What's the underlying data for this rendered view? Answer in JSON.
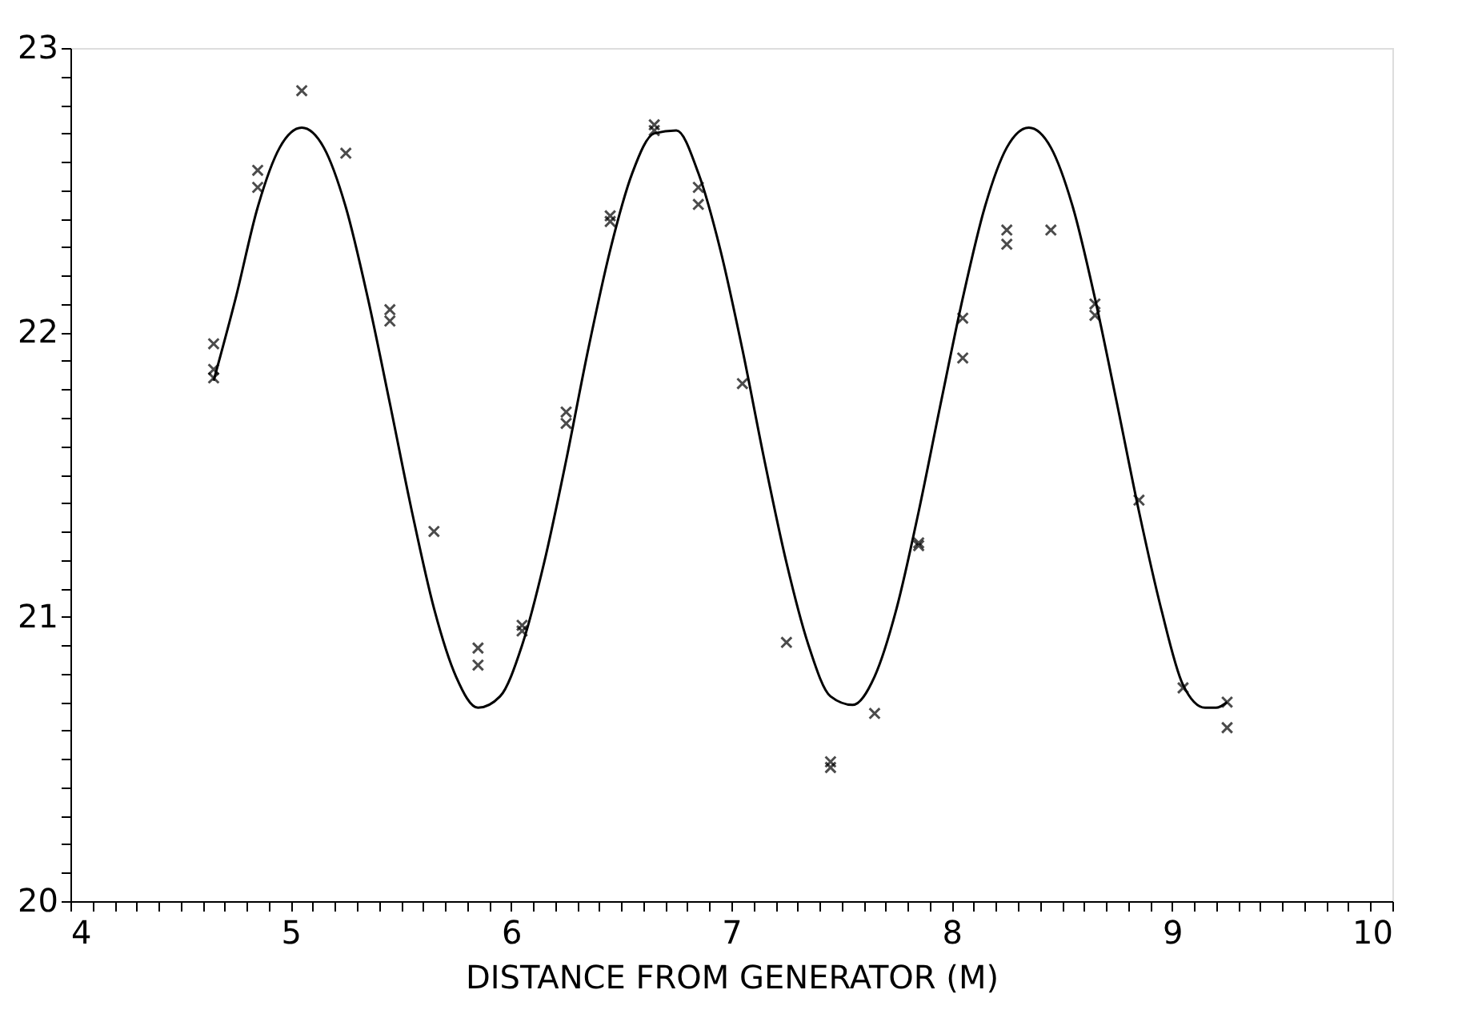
{
  "chart_data": {
    "type": "scatter",
    "xlabel": "DISTANCE FROM GENERATOR (M)",
    "xlim": [
      4,
      10
    ],
    "ylim": [
      20,
      23
    ],
    "grid": false,
    "xticks": [
      4,
      {
        "value": 4.1,
        "label": null
      },
      {
        "value": 4.2,
        "label": null
      },
      {
        "value": 4.3,
        "label": null
      },
      {
        "value": 4.4,
        "label": null
      },
      {
        "value": 4.5,
        "label": null
      },
      {
        "value": 4.6,
        "label": null
      },
      {
        "value": 4.7,
        "label": null
      },
      {
        "value": 4.8,
        "label": null
      },
      {
        "value": 4.9,
        "label": null
      },
      5,
      {
        "value": 5.1,
        "label": null
      },
      {
        "value": 5.2,
        "label": null
      },
      {
        "value": 5.3,
        "label": null
      },
      {
        "value": 5.4,
        "label": null
      },
      {
        "value": 5.5,
        "label": null
      },
      {
        "value": 5.6,
        "label": null
      },
      {
        "value": 5.7,
        "label": null
      },
      {
        "value": 5.8,
        "label": null
      },
      {
        "value": 5.9,
        "label": null
      },
      6,
      {
        "value": 6.1,
        "label": null
      },
      {
        "value": 6.2,
        "label": null
      },
      {
        "value": 6.3,
        "label": null
      },
      {
        "value": 6.4,
        "label": null
      },
      {
        "value": 6.5,
        "label": null
      },
      {
        "value": 6.6,
        "label": null
      },
      {
        "value": 6.7,
        "label": null
      },
      {
        "value": 6.8,
        "label": null
      },
      {
        "value": 6.9,
        "label": null
      },
      7,
      {
        "value": 7.1,
        "label": null
      },
      {
        "value": 7.2,
        "label": null
      },
      {
        "value": 7.3,
        "label": null
      },
      {
        "value": 7.4,
        "label": null
      },
      {
        "value": 7.5,
        "label": null
      },
      {
        "value": 7.6,
        "label": null
      },
      {
        "value": 7.7,
        "label": null
      },
      {
        "value": 7.8,
        "label": null
      },
      {
        "value": 7.9,
        "label": null
      },
      8,
      {
        "value": 8.1,
        "label": null
      },
      {
        "value": 8.2,
        "label": null
      },
      {
        "value": 8.3,
        "label": null
      },
      {
        "value": 8.4,
        "label": null
      },
      {
        "value": 8.5,
        "label": null
      },
      {
        "value": 8.6,
        "label": null
      },
      {
        "value": 8.7,
        "label": null
      },
      {
        "value": 8.8,
        "label": null
      },
      {
        "value": 8.9,
        "label": null
      },
      9,
      {
        "value": 9.1,
        "label": null
      },
      {
        "value": 9.2,
        "label": null
      },
      {
        "value": 9.3,
        "label": null
      },
      {
        "value": 9.4,
        "label": null
      },
      {
        "value": 9.5,
        "label": null
      },
      {
        "value": 9.6,
        "label": null
      },
      {
        "value": 9.7,
        "label": null
      },
      {
        "value": 9.8,
        "label": null
      },
      {
        "value": 9.9,
        "label": null
      },
      10
    ],
    "yticks": [
      20,
      {
        "value": 20.1,
        "label": null
      },
      {
        "value": 20.2,
        "label": null
      },
      {
        "value": 20.3,
        "label": null
      },
      {
        "value": 20.4,
        "label": null
      },
      {
        "value": 20.5,
        "label": null
      },
      {
        "value": 20.6,
        "label": null
      },
      {
        "value": 20.7,
        "label": null
      },
      {
        "value": 20.8,
        "label": null
      },
      {
        "value": 20.9,
        "label": null
      },
      21,
      {
        "value": 21.1,
        "label": null
      },
      {
        "value": 21.2,
        "label": null
      },
      {
        "value": 21.3,
        "label": null
      },
      {
        "value": 21.4,
        "label": null
      },
      {
        "value": 21.5,
        "label": null
      },
      {
        "value": 21.6,
        "label": null
      },
      {
        "value": 21.7,
        "label": null
      },
      {
        "value": 21.8,
        "label": null
      },
      {
        "value": 21.9,
        "label": null
      },
      22,
      {
        "value": 22.1,
        "label": null
      },
      {
        "value": 22.2,
        "label": null
      },
      {
        "value": 22.3,
        "label": null
      },
      {
        "value": 22.4,
        "label": null
      },
      {
        "value": 22.5,
        "label": null
      },
      {
        "value": 22.6,
        "label": null
      },
      {
        "value": 22.7,
        "label": null
      },
      {
        "value": 22.8,
        "label": null
      },
      {
        "value": 22.9,
        "label": null
      },
      23
    ],
    "series": [
      {
        "marker": "cross",
        "color": "#000000",
        "x": [
          4.65,
          4.65,
          4.65,
          4.85,
          4.85,
          5.05,
          5.25,
          5.45,
          5.45,
          5.65,
          5.85,
          5.85,
          6.05,
          6.05,
          6.25,
          6.25,
          6.45,
          6.45,
          6.65,
          6.65,
          6.85,
          6.85,
          7.05,
          7.25,
          7.45,
          7.45,
          7.65,
          7.85,
          7.85,
          8.05,
          8.05,
          8.25,
          8.25,
          8.45,
          8.65,
          8.65,
          8.85,
          9.05,
          9.25,
          9.25
        ],
        "values": [
          21.96,
          21.87,
          21.84,
          22.57,
          22.51,
          22.85,
          22.63,
          22.08,
          22.04,
          21.3,
          20.89,
          20.83,
          20.97,
          20.95,
          21.72,
          21.68,
          22.41,
          22.39,
          22.73,
          22.71,
          22.51,
          22.45,
          21.82,
          20.91,
          20.49,
          20.47,
          20.66,
          21.26,
          21.25,
          22.05,
          21.91,
          22.36,
          22.31,
          22.36,
          22.1,
          22.06,
          21.41,
          20.75,
          20.7,
          20.61
        ]
      },
      {
        "type": "line",
        "color": "#000000",
        "x": [
          4.65,
          4.75,
          4.85,
          4.95,
          5.05,
          5.15,
          5.25,
          5.35,
          5.45,
          5.55,
          5.65,
          5.75,
          5.85,
          5.95,
          6.05,
          6.15,
          6.25,
          6.35,
          6.45,
          6.55,
          6.65,
          6.75,
          6.85,
          6.95,
          7.05,
          7.15,
          7.25,
          7.35,
          7.45,
          7.55,
          7.65,
          7.75,
          7.85,
          7.95,
          8.05,
          8.15,
          8.25,
          8.35,
          8.45,
          8.55,
          8.65,
          8.75,
          8.85,
          8.95,
          9.05,
          9.15,
          9.2,
          9.25
        ],
        "values": [
          21.83,
          22.12,
          22.44,
          22.65,
          22.72,
          22.65,
          22.44,
          22.12,
          21.75,
          21.37,
          21.03,
          20.79,
          20.68,
          20.72,
          20.9,
          21.19,
          21.55,
          21.94,
          22.29,
          22.56,
          22.7,
          22.71,
          22.56,
          22.29,
          21.94,
          21.55,
          21.19,
          20.9,
          20.72,
          20.69,
          20.79,
          21.03,
          21.37,
          21.75,
          22.12,
          22.44,
          22.65,
          22.72,
          22.65,
          22.44,
          22.12,
          21.75,
          21.37,
          21.03,
          20.76,
          20.68,
          20.68,
          20.7
        ]
      }
    ]
  }
}
